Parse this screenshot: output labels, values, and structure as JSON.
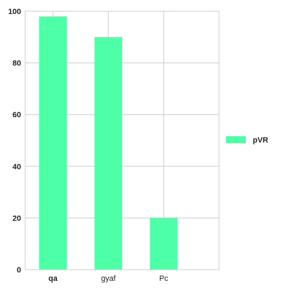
{
  "chart_data": {
    "type": "bar",
    "categories": [
      "qa",
      "gyaf",
      "Pc"
    ],
    "category_label_bold": [
      true,
      false,
      false
    ],
    "series": [
      {
        "name": "pVR",
        "values": [
          98,
          90,
          20
        ]
      }
    ],
    "ylim": [
      0,
      100
    ],
    "y_ticks": [
      0,
      20,
      40,
      60,
      80,
      100
    ],
    "grid": true,
    "legend": "right",
    "colors": {
      "bar": "#4dffa6",
      "grid": "#cccccc",
      "frame": "#cccccc"
    }
  }
}
